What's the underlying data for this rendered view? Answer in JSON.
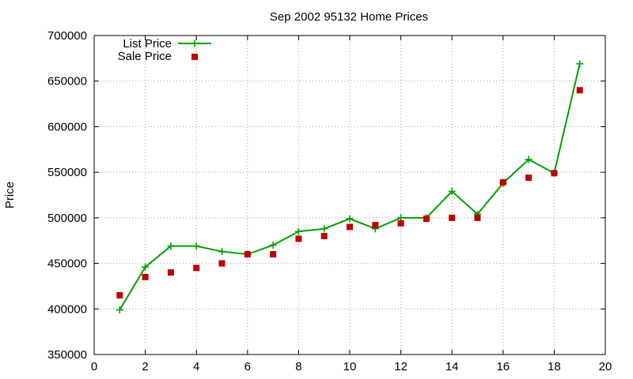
{
  "chart_data": {
    "type": "line",
    "title": "Sep 2002 95132 Home Prices",
    "xlabel": "",
    "ylabel": "Price",
    "xlim": [
      0,
      20
    ],
    "ylim": [
      350000,
      700000
    ],
    "x_ticks": [
      0,
      2,
      4,
      6,
      8,
      10,
      12,
      14,
      16,
      18,
      20
    ],
    "y_ticks": [
      350000,
      400000,
      450000,
      500000,
      550000,
      600000,
      650000,
      700000
    ],
    "grid": true,
    "legend_position": "top-left",
    "series": [
      {
        "name": "List Price",
        "style": "line-with-plus-markers",
        "color": "#00a000",
        "x": [
          1,
          2,
          3,
          4,
          5,
          6,
          7,
          8,
          9,
          10,
          11,
          12,
          13,
          14,
          15,
          16,
          17,
          18,
          19
        ],
        "values": [
          399000,
          446000,
          469000,
          469000,
          463000,
          460000,
          470000,
          485000,
          488000,
          499000,
          488000,
          500000,
          500000,
          529000,
          504000,
          538000,
          564000,
          549000,
          669000
        ]
      },
      {
        "name": "Sale Price",
        "style": "square-markers",
        "color": "#c00000",
        "x": [
          1,
          2,
          3,
          4,
          5,
          6,
          7,
          8,
          9,
          10,
          11,
          12,
          13,
          14,
          15,
          16,
          17,
          18,
          19
        ],
        "values": [
          415000,
          435000,
          440000,
          445000,
          450000,
          460000,
          460000,
          477000,
          480000,
          490000,
          492000,
          494000,
          499000,
          500000,
          500000,
          539000,
          544000,
          549000,
          640000
        ]
      }
    ]
  }
}
